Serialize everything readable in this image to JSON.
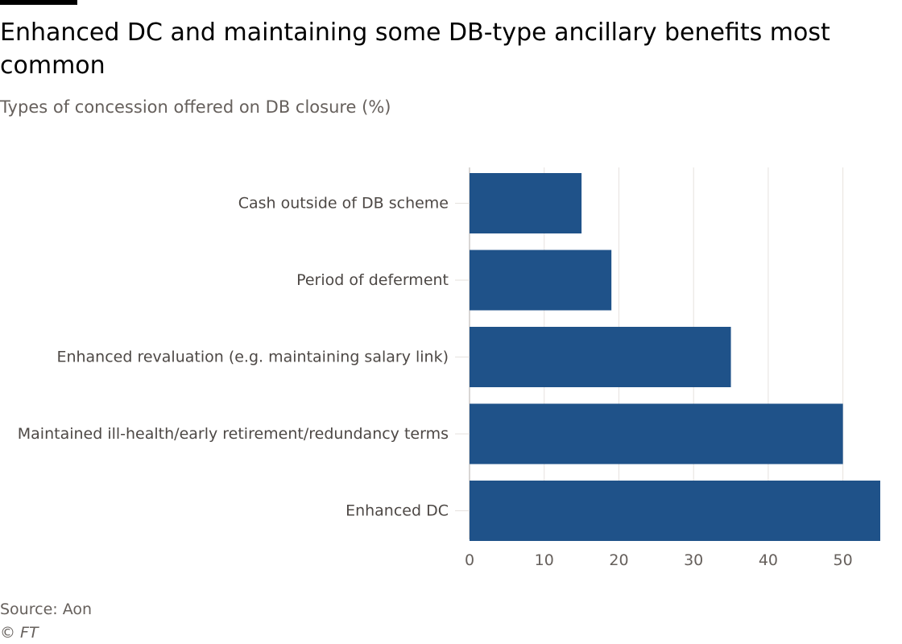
{
  "header": {
    "title": "Enhanced DC and maintaining some DB-type ancillary benefits most common",
    "subtitle": "Types of concession offered on DB closure (%)"
  },
  "footer": {
    "source": "Source: Aon",
    "copyright": "© FT"
  },
  "colors": {
    "bar": "#1f5289",
    "grid": "#e6e2de",
    "axis": "#b3aea9",
    "text": "#66605c"
  },
  "chart_data": {
    "type": "bar",
    "orientation": "horizontal",
    "title": "Enhanced DC and maintaining some DB-type ancillary benefits most common",
    "subtitle": "Types of concession offered on DB closure (%)",
    "categories": [
      "Cash outside of DB scheme",
      "Period of deferment",
      "Enhanced revaluation (e.g. maintaining salary link)",
      "Maintained ill-health/early retirement/redundancy terms",
      "Enhanced DC"
    ],
    "values": [
      15,
      19,
      35,
      50,
      55
    ],
    "xlim": [
      0,
      55
    ],
    "xticks": [
      0,
      10,
      20,
      30,
      40,
      50
    ],
    "grid": true,
    "legend": "none"
  }
}
